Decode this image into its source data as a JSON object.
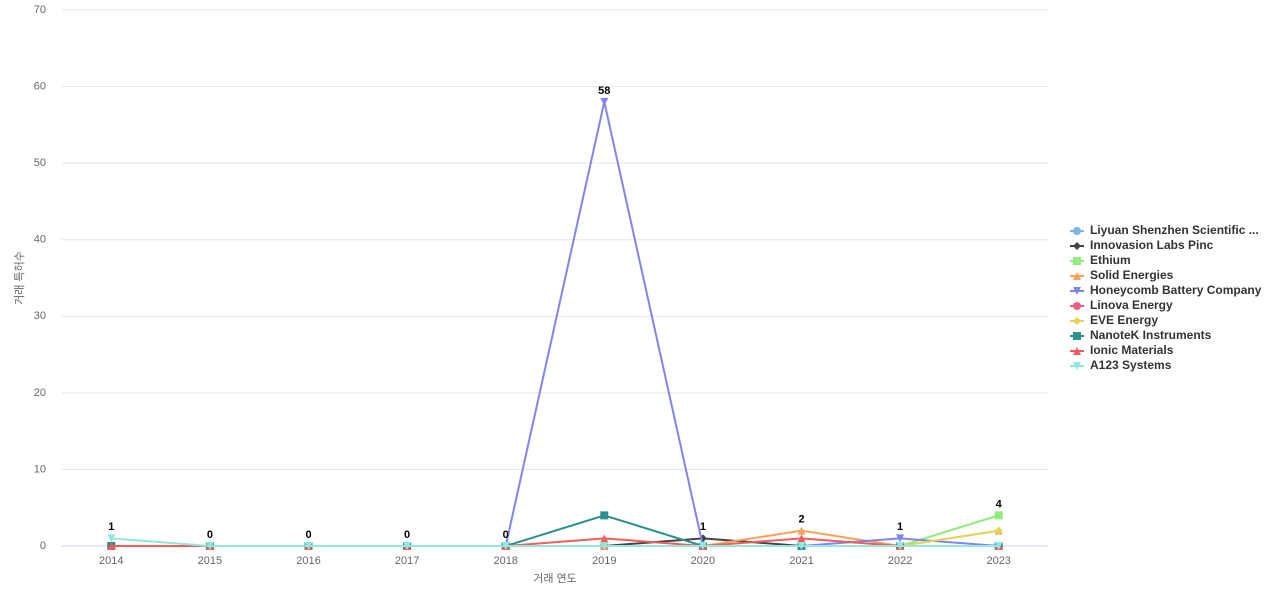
{
  "chart_data": {
    "type": "line",
    "x_label": "거래 연도",
    "y_label": "거래 특허수",
    "categories": [
      "2014",
      "2015",
      "2016",
      "2017",
      "2018",
      "2019",
      "2020",
      "2021",
      "2022",
      "2023"
    ],
    "ylim": [
      0,
      70
    ],
    "yticks": [
      0,
      10,
      20,
      30,
      40,
      50,
      60,
      70
    ],
    "grid": true,
    "legend": "right",
    "series": [
      {
        "name": "Liyuan Shenzhen Scientific ...",
        "color": "#7cb5ec",
        "marker": "circle",
        "values": [
          0,
          0,
          0,
          0,
          0,
          0,
          0,
          0,
          0,
          0
        ]
      },
      {
        "name": "Innovasion Labs Pinc",
        "color": "#434348",
        "marker": "diamond",
        "values": [
          0,
          0,
          0,
          0,
          0,
          0,
          1,
          0,
          0,
          0
        ]
      },
      {
        "name": "Ethium",
        "color": "#90ed7d",
        "marker": "square",
        "values": [
          0,
          0,
          0,
          0,
          0,
          0,
          0,
          0,
          0,
          4
        ]
      },
      {
        "name": "Solid Energies",
        "color": "#f7a35c",
        "marker": "triangle",
        "values": [
          0,
          0,
          0,
          0,
          0,
          0,
          0,
          2,
          0,
          2
        ]
      },
      {
        "name": "Honeycomb Battery Company",
        "color": "#8085e9",
        "marker": "triangle-down",
        "values": [
          0,
          0,
          0,
          0,
          0,
          58,
          0,
          0,
          1,
          0
        ]
      },
      {
        "name": "Linova Energy",
        "color": "#f15c80",
        "marker": "circle",
        "values": [
          0,
          0,
          0,
          0,
          0,
          0,
          0,
          0,
          0,
          0
        ]
      },
      {
        "name": "EVE Energy",
        "color": "#e4d354",
        "marker": "diamond",
        "values": [
          0,
          0,
          0,
          0,
          0,
          0,
          0,
          0,
          0,
          2
        ]
      },
      {
        "name": "NanoteK Instruments",
        "color": "#2b908f",
        "marker": "square",
        "values": [
          0,
          0,
          0,
          0,
          0,
          4,
          0,
          0,
          0,
          0
        ]
      },
      {
        "name": "Ionic Materials",
        "color": "#f45b5b",
        "marker": "triangle",
        "values": [
          0,
          0,
          0,
          0,
          0,
          1,
          0,
          1,
          0,
          0
        ]
      },
      {
        "name": "A123 Systems",
        "color": "#91e8e1",
        "marker": "triangle-down",
        "values": [
          1,
          0,
          0,
          0,
          0,
          0,
          0,
          0,
          0,
          0
        ]
      }
    ]
  }
}
